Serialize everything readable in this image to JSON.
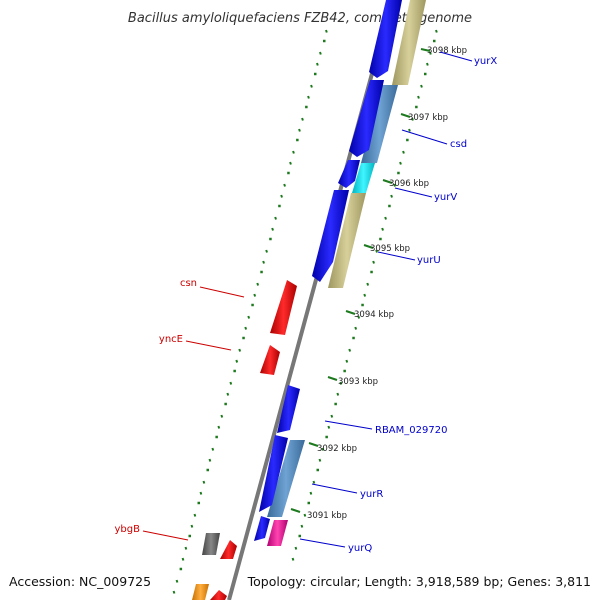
{
  "title": "Bacillus amyloliquefaciens FZB42, complete genome",
  "accession": "Accession: NC_009725",
  "summary": "Topology: circular; Length: 3,918,589 bp; Genes: 3,811",
  "colors": {
    "backbone": "#777777",
    "tick": "#1e7a1e",
    "forward_label": "#0000cc",
    "reverse_label": "#cc0000",
    "forward_gene": "#0000ee",
    "reverse_gene": "#ee0000",
    "cog_khaki": "#c8c08a",
    "cog_steelblue": "#5b8fc0",
    "cog_cyan": "#00e5f0",
    "cog_magenta": "#e8229a",
    "cog_gray": "#666666",
    "cog_orange": "#f5960f"
  },
  "kbp_markers": [
    "3091 kbp",
    "3092 kbp",
    "3093 kbp",
    "3094 kbp",
    "3095 kbp",
    "3096 kbp",
    "3097 kbp",
    "3098 kbp"
  ],
  "forward_genes": [
    "yurX",
    "csd",
    "yurV",
    "yurU",
    "RBAM_029720",
    "yurR",
    "yurQ"
  ],
  "reverse_genes": [
    "csn",
    "yncE",
    "ybgB"
  ]
}
